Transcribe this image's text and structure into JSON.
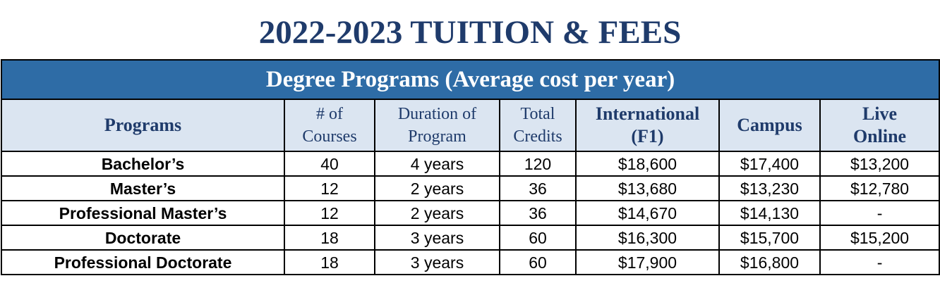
{
  "title": "2022-2023 TUITION & FEES",
  "table": {
    "banner": "Degree Programs (Average cost per year)",
    "headers": [
      {
        "line1": "Programs",
        "line2": ""
      },
      {
        "line1": "# of",
        "line2": "Courses"
      },
      {
        "line1": "Duration of",
        "line2": "Program"
      },
      {
        "line1": "Total",
        "line2": "Credits"
      },
      {
        "line1": "International",
        "line2": "(F1)"
      },
      {
        "line1": "Campus",
        "line2": ""
      },
      {
        "line1": "Live",
        "line2": "Online"
      }
    ],
    "rows": [
      {
        "program": "Bachelor’s",
        "courses": "40",
        "duration": "4 years",
        "credits": "120",
        "international": "$18,600",
        "campus": "$17,400",
        "online": "$13,200"
      },
      {
        "program": "Master’s",
        "courses": "12",
        "duration": "2 years",
        "credits": "36",
        "international": "$13,680",
        "campus": "$13,230",
        "online": "$12,780"
      },
      {
        "program": "Professional Master’s",
        "courses": "12",
        "duration": "2 years",
        "credits": "36",
        "international": "$14,670",
        "campus": "$14,130",
        "online": "-"
      },
      {
        "program": "Doctorate",
        "courses": "18",
        "duration": "3 years",
        "credits": "60",
        "international": "$16,300",
        "campus": "$15,700",
        "online": "$15,200"
      },
      {
        "program": "Professional Doctorate",
        "courses": "18",
        "duration": "3 years",
        "credits": "60",
        "international": "$17,900",
        "campus": "$16,800",
        "online": "-"
      }
    ]
  },
  "colors": {
    "title": "#1f3b6b",
    "banner_bg": "#2e6ca6",
    "header_bg": "#dbe5f1"
  }
}
